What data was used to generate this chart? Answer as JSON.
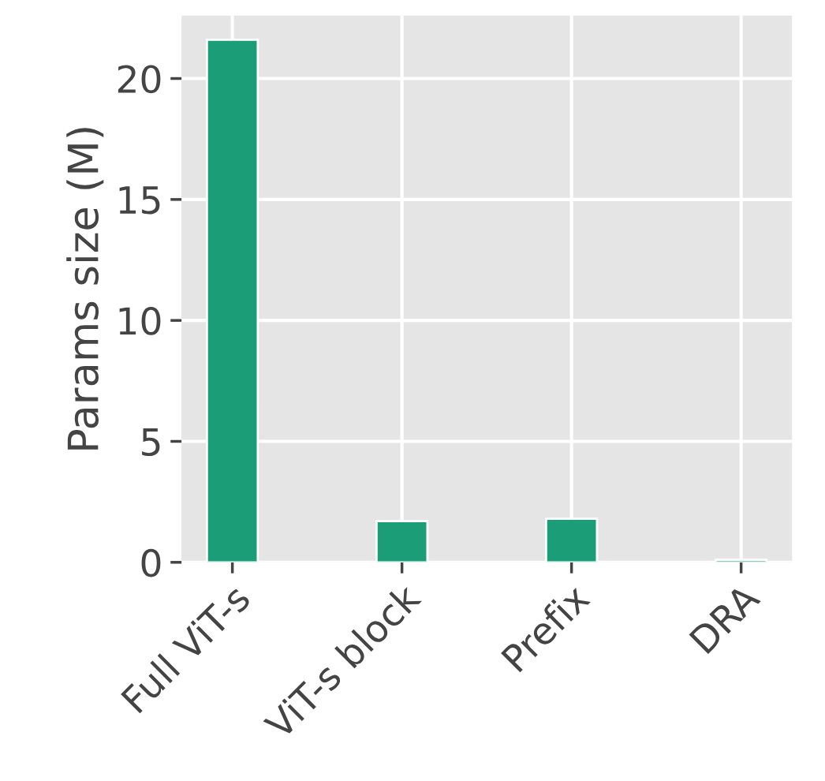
{
  "chart_data": {
    "type": "bar",
    "ylabel": "Params size (M)",
    "categories": [
      "Full ViT-s",
      "ViT-s block",
      "Prefix",
      "DRA"
    ],
    "values": [
      21.6,
      1.7,
      1.8,
      0.1
    ],
    "color": "#1b9e77",
    "ylim": [
      0,
      22.6
    ],
    "yticks": [
      0,
      5,
      10,
      15,
      20
    ],
    "grid": true
  }
}
